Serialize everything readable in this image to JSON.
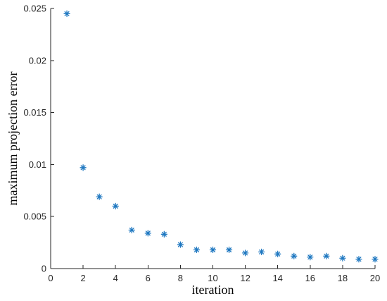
{
  "chart_data": {
    "type": "scatter",
    "title": "",
    "xlabel": "iteration",
    "ylabel": "maximum projection error",
    "xlim": [
      0,
      20
    ],
    "ylim": [
      0,
      0.025
    ],
    "xticks": [
      "0",
      "2",
      "4",
      "6",
      "8",
      "10",
      "12",
      "14",
      "16",
      "18",
      "20"
    ],
    "yticks": [
      "0",
      "0.005",
      "0.01",
      "0.015",
      "0.02",
      "0.025"
    ],
    "grid": false,
    "marker": "asterisk",
    "marker_color": "#1f78c1",
    "series": [
      {
        "x": [
          1,
          2,
          3,
          4,
          5,
          6,
          7,
          8,
          9,
          10,
          11,
          12,
          13,
          14,
          15,
          16,
          17,
          18,
          19,
          20
        ],
        "y": [
          0.0245,
          0.0097,
          0.0069,
          0.006,
          0.0037,
          0.0034,
          0.0033,
          0.0023,
          0.0018,
          0.0018,
          0.0018,
          0.0015,
          0.0016,
          0.0014,
          0.0012,
          0.0011,
          0.0012,
          0.001,
          0.0009,
          0.0009
        ]
      }
    ]
  }
}
